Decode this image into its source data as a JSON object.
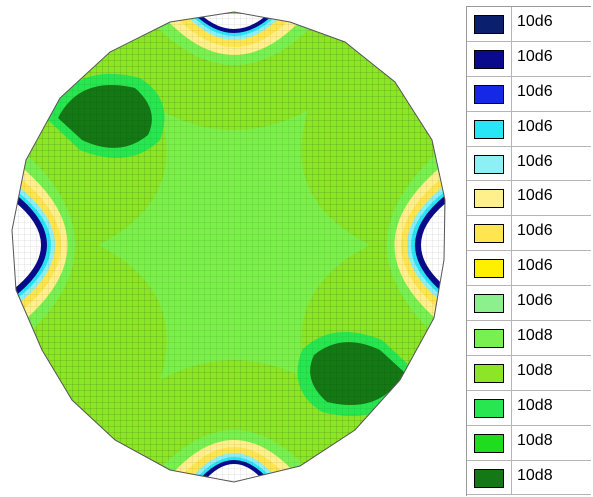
{
  "legend": {
    "items": [
      {
        "label": "10d6",
        "color": "#0a1f6e"
      },
      {
        "label": "10d6",
        "color": "#0a0a8c"
      },
      {
        "label": "10d6",
        "color": "#1428e6"
      },
      {
        "label": "10d6",
        "color": "#28e6f5"
      },
      {
        "label": "10d6",
        "color": "#8cf0f5"
      },
      {
        "label": "10d6",
        "color": "#fff08c"
      },
      {
        "label": "10d6",
        "color": "#ffe650"
      },
      {
        "label": "10d6",
        "color": "#fff000"
      },
      {
        "label": "10d6",
        "color": "#8cf08c"
      },
      {
        "label": "10d8",
        "color": "#78f050"
      },
      {
        "label": "10d8",
        "color": "#8ce628"
      },
      {
        "label": "10d8",
        "color": "#28e650"
      },
      {
        "label": "10d8",
        "color": "#1edc1e"
      },
      {
        "label": "10d8",
        "color": "#147814"
      }
    ]
  }
}
